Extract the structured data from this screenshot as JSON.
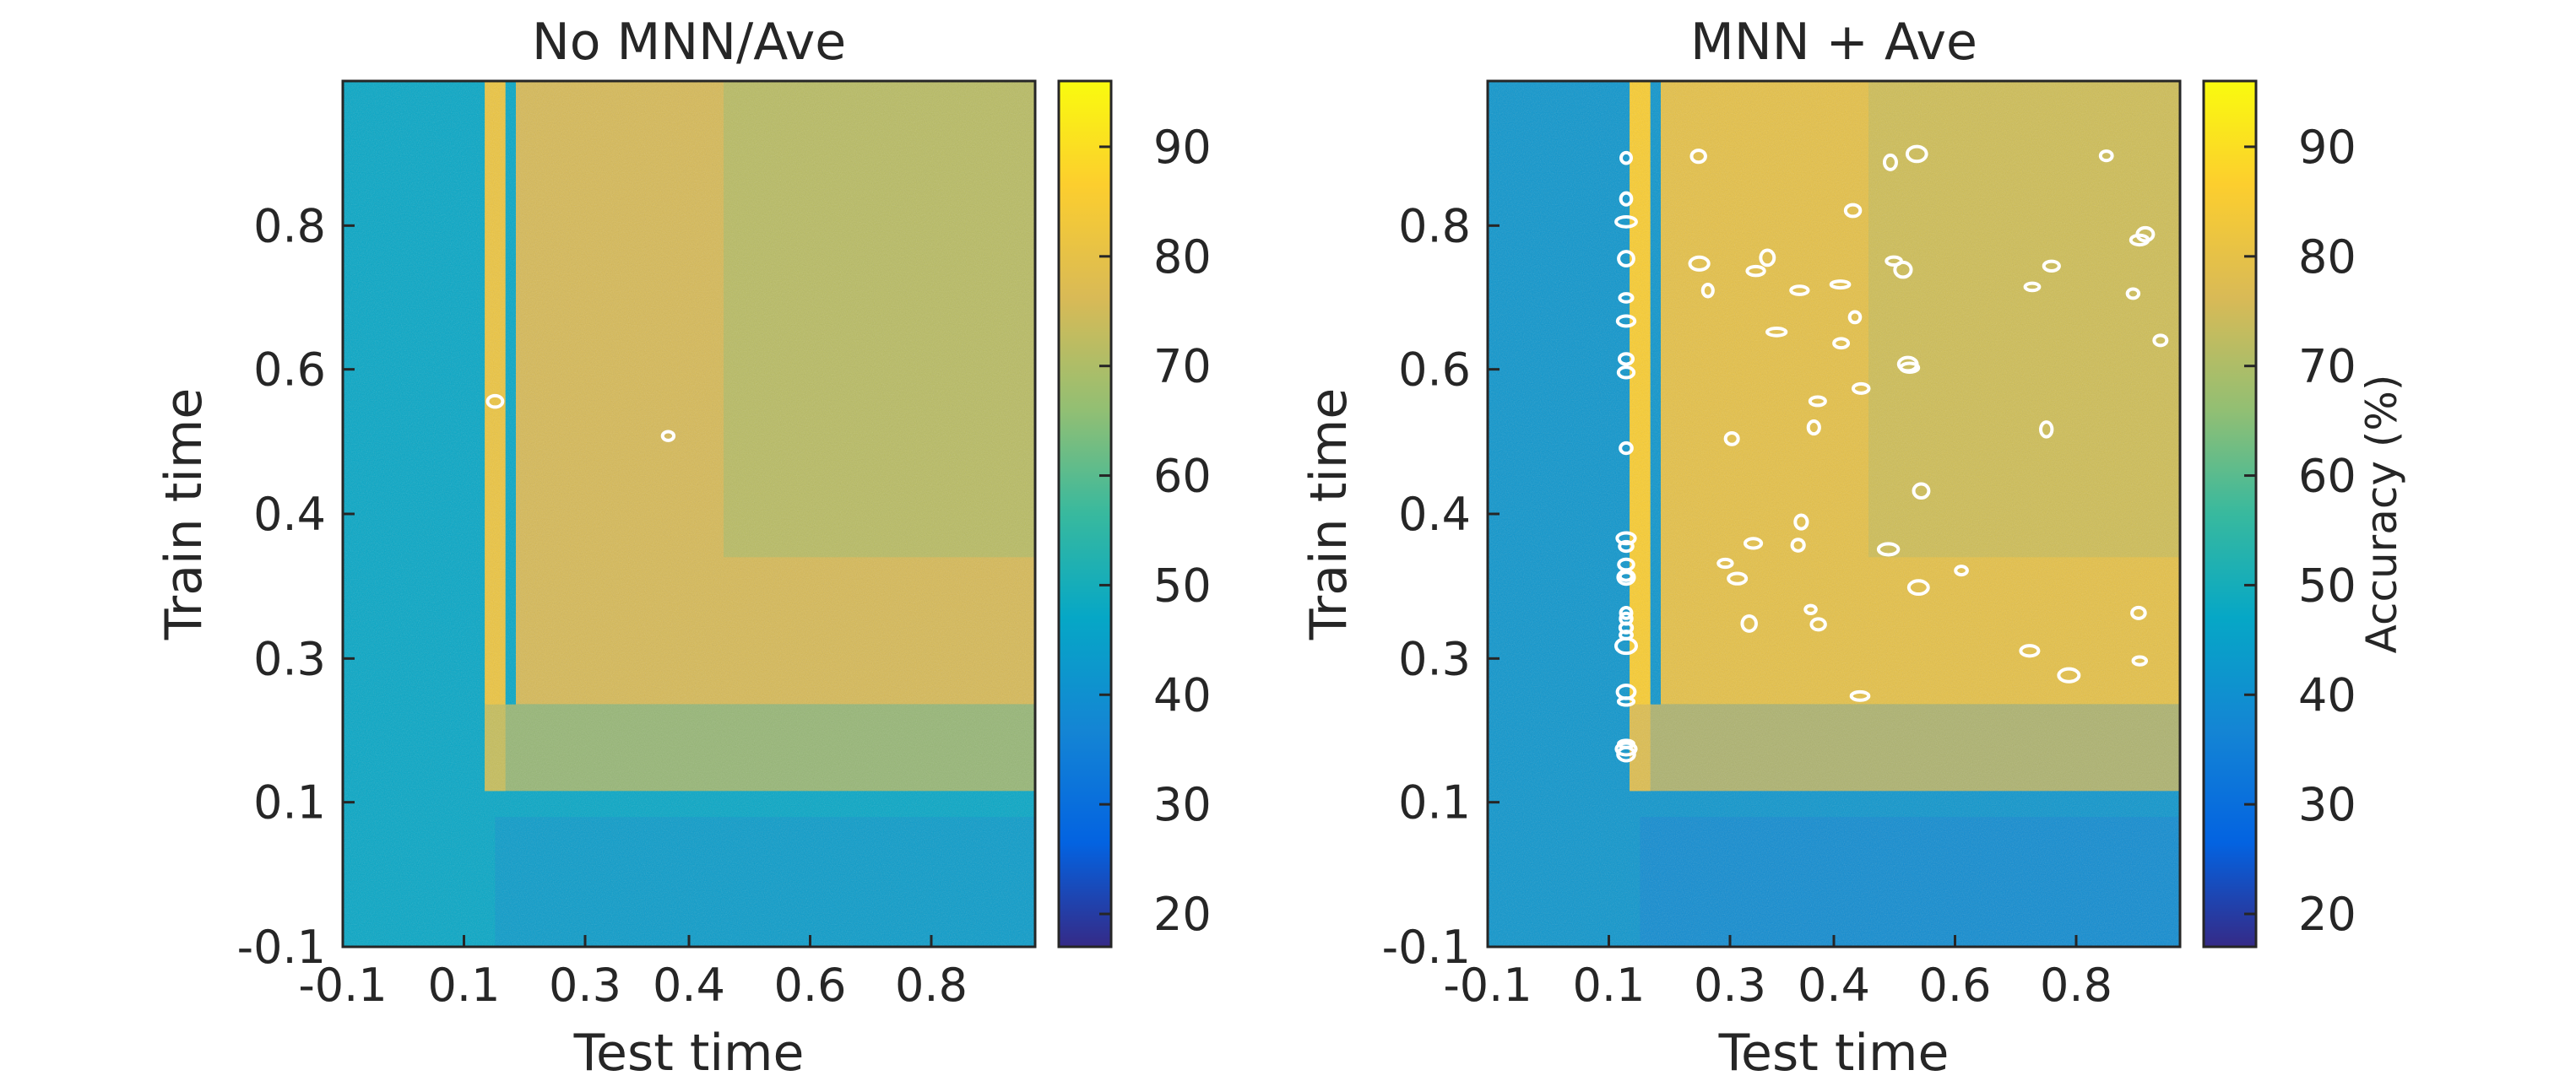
{
  "chart_data": [
    {
      "type": "heatmap",
      "title": "No MNN/Ave",
      "xlabel": "Test time",
      "ylabel": "Train time",
      "x_ticks": [
        "-0.1",
        "0.1",
        "0.3",
        "0.4",
        "0.6",
        "0.8"
      ],
      "y_ticks": [
        "-0.1",
        "0.1",
        "0.3",
        "0.4",
        "0.6",
        "0.8"
      ],
      "colorbar": {
        "ticks": [
          "20",
          "30",
          "40",
          "50",
          "60",
          "70",
          "80",
          "90"
        ],
        "range": [
          17,
          96
        ],
        "label": "",
        "colormap": "parula"
      },
      "values_percent": {
        "before_onset": 47,
        "diagonal_onset_band": 82,
        "sustained_region": 76,
        "late_train_rows": 68
      },
      "significance_contours": "few (2 small islands)"
    },
    {
      "type": "heatmap",
      "title": "MNN + Ave",
      "xlabel": "Test time",
      "ylabel": "Train time",
      "x_ticks": [
        "-0.1",
        "0.1",
        "0.3",
        "0.4",
        "0.6",
        "0.8"
      ],
      "y_ticks": [
        "-0.1",
        "0.1",
        "0.3",
        "0.4",
        "0.6",
        "0.8"
      ],
      "colorbar": {
        "ticks": [
          "20",
          "30",
          "40",
          "50",
          "60",
          "70",
          "80",
          "90"
        ],
        "range": [
          17,
          96
        ],
        "label": "Accuracy (%)",
        "colormap": "parula"
      },
      "values_percent": {
        "before_onset": 42,
        "diagonal_onset_band": 86,
        "sustained_region": 80,
        "late_train_rows": 72
      },
      "significance_contours": "many (scattered white outlines)"
    }
  ],
  "colors": {
    "parula_low": "#352a87",
    "parula_mid": "#21a7c2",
    "parula_high": "#f9fb0e",
    "contour": "#ffffff",
    "axis": "#262626"
  }
}
